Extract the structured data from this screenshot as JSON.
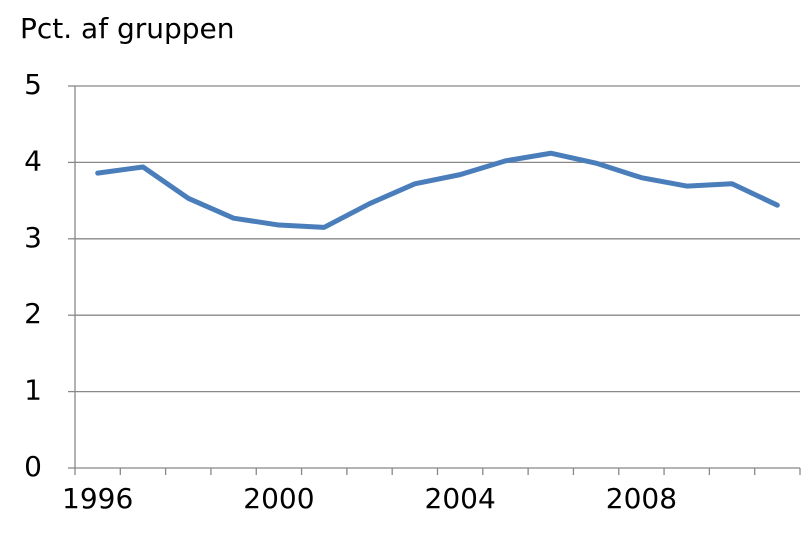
{
  "chart_data": {
    "type": "line",
    "title": "Pct. af gruppen",
    "categories": [
      "1996",
      null,
      null,
      null,
      "2000",
      null,
      null,
      null,
      "2004",
      null,
      null,
      null,
      "2008",
      null,
      null,
      null
    ],
    "series": [
      {
        "color": "#4a7ebb",
        "values": [
          3.86,
          3.94,
          3.53,
          3.27,
          3.18,
          3.15,
          3.46,
          3.72,
          3.84,
          4.02,
          4.12,
          3.99,
          3.8,
          3.69,
          3.72,
          3.44
        ]
      }
    ],
    "ylim": [
      0,
      5
    ],
    "yticks": [
      0,
      1,
      2,
      3,
      4,
      5
    ],
    "grid": true
  }
}
